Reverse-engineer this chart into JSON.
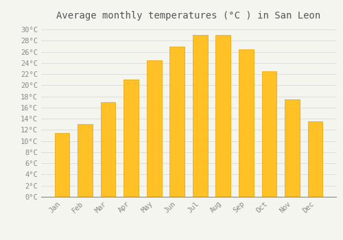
{
  "title": "Average monthly temperatures (°C ) in San Leon",
  "months": [
    "Jan",
    "Feb",
    "Mar",
    "Apr",
    "May",
    "Jun",
    "Jul",
    "Aug",
    "Sep",
    "Oct",
    "Nov",
    "Dec"
  ],
  "values": [
    11.5,
    13.0,
    17.0,
    21.0,
    24.5,
    27.0,
    29.0,
    29.0,
    26.5,
    22.5,
    17.5,
    13.5
  ],
  "bar_color": "#FFC125",
  "bar_edge_color": "#E8A000",
  "background_color": "#F5F5F0",
  "grid_color": "#DDDDDD",
  "text_color": "#888888",
  "title_color": "#555555",
  "ylim": [
    0,
    31
  ],
  "yticks": [
    0,
    2,
    4,
    6,
    8,
    10,
    12,
    14,
    16,
    18,
    20,
    22,
    24,
    26,
    28,
    30
  ],
  "title_fontsize": 10,
  "tick_fontsize": 7.5,
  "bar_width": 0.65
}
